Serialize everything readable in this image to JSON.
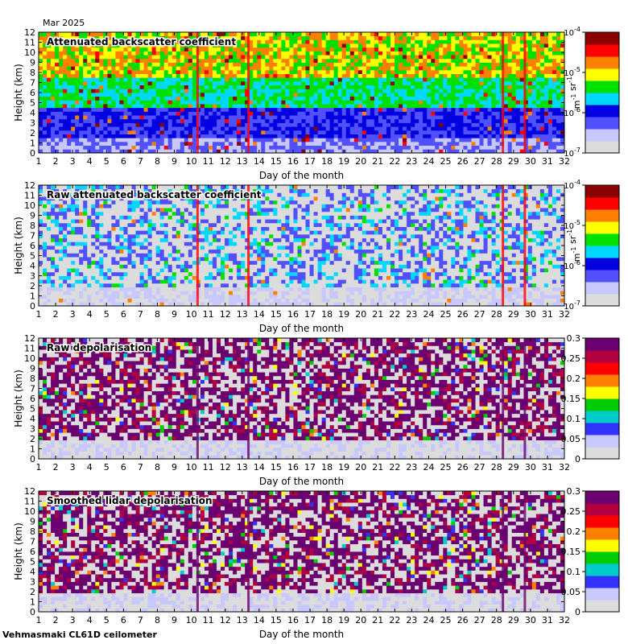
{
  "header": {
    "month": "Mar 2025"
  },
  "footer": {
    "instrument": "Vehmasmaki CL61D ceilometer"
  },
  "colors": {
    "palette_backscatter": [
      "#dcdcdc",
      "#c8c8ff",
      "#5050ff",
      "#0000e0",
      "#00d8ff",
      "#00e000",
      "#ffff00",
      "#ff8000",
      "#ff0000",
      "#8b0000"
    ],
    "palette_depol": [
      "#dcdcdc",
      "#c8c8ff",
      "#3333ff",
      "#00cccc",
      "#00cc00",
      "#ffff00",
      "#ff8000",
      "#ff0000",
      "#b00040",
      "#6b0070"
    ]
  },
  "chart_data": [
    {
      "type": "heatmap",
      "title": "Attenuated backscatter coefficient",
      "xlabel": "Day of the month",
      "ylabel": "Height (km)",
      "xlim": [
        1,
        32
      ],
      "ylim": [
        0,
        12
      ],
      "x_ticks": [
        "1",
        "2",
        "3",
        "4",
        "5",
        "6",
        "7",
        "8",
        "9",
        "10",
        "11",
        "12",
        "13",
        "14",
        "15",
        "16",
        "17",
        "18",
        "19",
        "20",
        "21",
        "22",
        "23",
        "24",
        "25",
        "26",
        "27",
        "28",
        "29",
        "30",
        "31",
        "32"
      ],
      "y_ticks": [
        "0",
        "1",
        "2",
        "3",
        "4",
        "5",
        "6",
        "7",
        "8",
        "9",
        "10",
        "11",
        "12"
      ],
      "colorbar": {
        "scale": "log",
        "ticks": [
          "10-7",
          "10-6",
          "10-5",
          "10-4"
        ],
        "unit": "m-1 sr-1"
      }
    },
    {
      "type": "heatmap",
      "title": "Raw attenuated backscatter coefficient",
      "xlabel": "Day of the month",
      "ylabel": "Height (km)",
      "xlim": [
        1,
        32
      ],
      "ylim": [
        0,
        12
      ],
      "x_ticks": [
        "1",
        "2",
        "3",
        "4",
        "5",
        "6",
        "7",
        "8",
        "9",
        "10",
        "11",
        "12",
        "13",
        "14",
        "15",
        "16",
        "17",
        "18",
        "19",
        "20",
        "21",
        "22",
        "23",
        "24",
        "25",
        "26",
        "27",
        "28",
        "29",
        "30",
        "31",
        "32"
      ],
      "y_ticks": [
        "0",
        "1",
        "2",
        "3",
        "4",
        "5",
        "6",
        "7",
        "8",
        "9",
        "10",
        "11",
        "12"
      ],
      "colorbar": {
        "scale": "log",
        "ticks": [
          "10-7",
          "10-6",
          "10-5",
          "10-4"
        ],
        "unit": "m-1 sr-1"
      }
    },
    {
      "type": "heatmap",
      "title": "Raw depolarisation",
      "xlabel": "Day of the month",
      "ylabel": "Height (km)",
      "xlim": [
        1,
        32
      ],
      "ylim": [
        0,
        12
      ],
      "x_ticks": [
        "1",
        "2",
        "3",
        "4",
        "5",
        "6",
        "7",
        "8",
        "9",
        "10",
        "11",
        "12",
        "13",
        "14",
        "15",
        "16",
        "17",
        "18",
        "19",
        "20",
        "21",
        "22",
        "23",
        "24",
        "25",
        "26",
        "27",
        "28",
        "29",
        "30",
        "31",
        "32"
      ],
      "y_ticks": [
        "0",
        "1",
        "2",
        "3",
        "4",
        "5",
        "6",
        "7",
        "8",
        "9",
        "10",
        "11",
        "12"
      ],
      "colorbar": {
        "scale": "linear",
        "ticks": [
          "0",
          "0.05",
          "0.1",
          "0.15",
          "0.2",
          "0.25",
          "0.3"
        ],
        "unit": ""
      }
    },
    {
      "type": "heatmap",
      "title": "Smoothed lidar depolarisation",
      "xlabel": "Day of the month",
      "ylabel": "Height (km)",
      "xlim": [
        1,
        32
      ],
      "ylim": [
        0,
        12
      ],
      "x_ticks": [
        "1",
        "2",
        "3",
        "4",
        "5",
        "6",
        "7",
        "8",
        "9",
        "10",
        "11",
        "12",
        "13",
        "14",
        "15",
        "16",
        "17",
        "18",
        "19",
        "20",
        "21",
        "22",
        "23",
        "24",
        "25",
        "26",
        "27",
        "28",
        "29",
        "30",
        "31",
        "32"
      ],
      "y_ticks": [
        "0",
        "1",
        "2",
        "3",
        "4",
        "5",
        "6",
        "7",
        "8",
        "9",
        "10",
        "11",
        "12"
      ],
      "colorbar": {
        "scale": "linear",
        "ticks": [
          "0",
          "0.05",
          "0.1",
          "0.15",
          "0.2",
          "0.25",
          "0.3"
        ],
        "unit": ""
      }
    }
  ]
}
